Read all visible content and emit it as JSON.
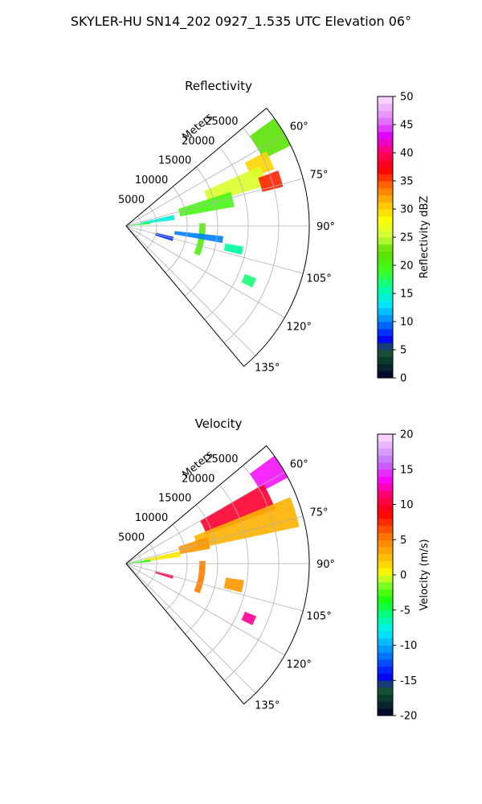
{
  "figure": {
    "title": "SKYLER-HU  SN14_202  0927_1.535 UTC Elevation 06°"
  },
  "chart_data": [
    {
      "type": "heatmap",
      "projection": "polar-sector",
      "title": "Reflectivity",
      "radial_label": "Meters",
      "r_ticks": [
        "5000",
        "10000",
        "15000",
        "20000",
        "25000"
      ],
      "r_tick_values": [
        5000,
        10000,
        15000,
        20000,
        25000
      ],
      "r_max": 30000,
      "theta_range_deg": [
        50,
        140
      ],
      "theta_ticks": [
        "60°",
        "75°",
        "90°",
        "105°",
        "120°",
        "135°"
      ],
      "theta_tick_values": [
        60,
        75,
        90,
        105,
        120,
        135
      ],
      "grid": true,
      "colorbar": {
        "label": "Reflectivity dBZ",
        "min": 0,
        "max": 50,
        "ticks": [
          "0",
          "5",
          "10",
          "15",
          "20",
          "25",
          "30",
          "35",
          "40",
          "45",
          "50"
        ],
        "tick_values": [
          0,
          5,
          10,
          15,
          20,
          25,
          30,
          35,
          40,
          45,
          50
        ]
      },
      "echoes": [
        {
          "az": [
            54,
            64
          ],
          "r": [
            25000,
            30000
          ],
          "value": 22
        },
        {
          "az": [
            62,
            69
          ],
          "r": [
            22000,
            26000
          ],
          "value": 30
        },
        {
          "az": [
            66,
            74
          ],
          "r": [
            14000,
            24000
          ],
          "value": 26
        },
        {
          "az": [
            70,
            76
          ],
          "r": [
            23000,
            26500
          ],
          "value": 36
        },
        {
          "az": [
            72,
            80
          ],
          "r": [
            9000,
            18000
          ],
          "value": 20
        },
        {
          "az": [
            77,
            83
          ],
          "r": [
            2500,
            8000
          ],
          "value": 14
        },
        {
          "az": [
            80,
            86
          ],
          "r": [
            600,
            4000
          ],
          "value": 18
        },
        {
          "az": [
            88,
            112
          ],
          "r": [
            12000,
            13000
          ],
          "value": 21
        },
        {
          "az": [
            96,
            100
          ],
          "r": [
            8000,
            16000
          ],
          "value": 10
        },
        {
          "az": [
            100,
            104
          ],
          "r": [
            16500,
            19500
          ],
          "value": 16
        },
        {
          "az": [
            103,
            108
          ],
          "r": [
            5000,
            8000
          ],
          "value": 8
        },
        {
          "az": [
            112,
            116
          ],
          "r": [
            21000,
            23000
          ],
          "value": 17
        }
      ]
    },
    {
      "type": "heatmap",
      "projection": "polar-sector",
      "title": "Velocity",
      "radial_label": "Meters",
      "r_ticks": [
        "5000",
        "10000",
        "15000",
        "20000",
        "25000"
      ],
      "r_tick_values": [
        5000,
        10000,
        15000,
        20000,
        25000
      ],
      "r_max": 30000,
      "theta_range_deg": [
        50,
        140
      ],
      "theta_ticks": [
        "60°",
        "75°",
        "90°",
        "105°",
        "120°",
        "135°"
      ],
      "theta_tick_values": [
        60,
        75,
        90,
        105,
        120,
        135
      ],
      "grid": true,
      "colorbar": {
        "label": "Velocity (m/s)",
        "min": -20,
        "max": 20,
        "ticks": [
          "-20",
          "-15",
          "-10",
          "-5",
          "0",
          "5",
          "10",
          "15",
          "20"
        ],
        "tick_values": [
          -20,
          -15,
          -10,
          -5,
          0,
          5,
          10,
          15,
          20
        ]
      },
      "echoes": [
        {
          "az": [
            54,
            62
          ],
          "r": [
            25000,
            30000
          ],
          "value": 14
        },
        {
          "az": [
            60,
            70
          ],
          "r": [
            14000,
            26000
          ],
          "value": 10
        },
        {
          "az": [
            68,
            78
          ],
          "r": [
            12000,
            29000
          ],
          "value": 3
        },
        {
          "az": [
            72,
            80
          ],
          "r": [
            9000,
            14000
          ],
          "value": 4
        },
        {
          "az": [
            77,
            83
          ],
          "r": [
            3000,
            9000
          ],
          "value": 1
        },
        {
          "az": [
            80,
            86
          ],
          "r": [
            600,
            4000
          ],
          "value": -3
        },
        {
          "az": [
            88,
            112
          ],
          "r": [
            12000,
            13000
          ],
          "value": 5
        },
        {
          "az": [
            98,
            104
          ],
          "r": [
            16500,
            19500
          ],
          "value": 4
        },
        {
          "az": [
            104,
            108
          ],
          "r": [
            5000,
            8000
          ],
          "value": 11
        },
        {
          "az": [
            112,
            116
          ],
          "r": [
            21000,
            23000
          ],
          "value": 12
        }
      ]
    }
  ]
}
